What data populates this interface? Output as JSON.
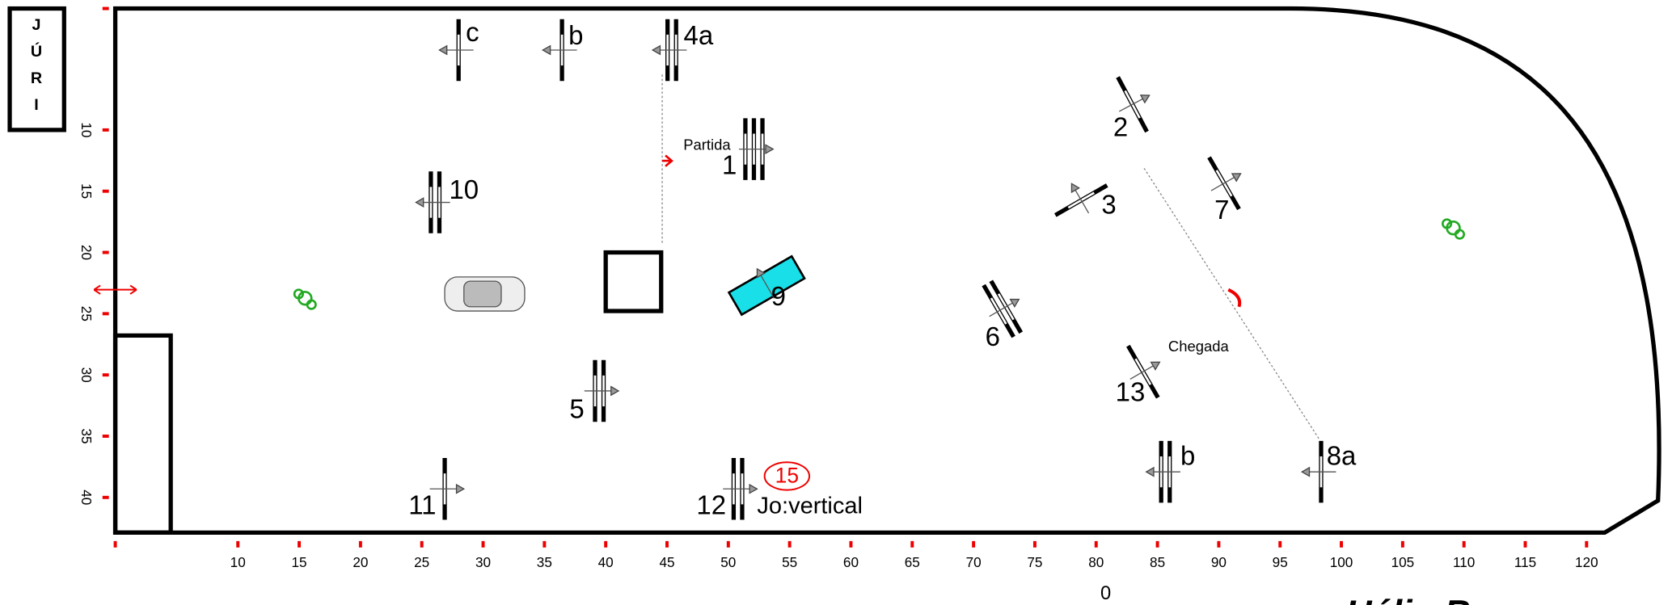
{
  "jury": [
    "J",
    "Ú",
    "R",
    "I"
  ],
  "x_scale": [
    10,
    15,
    20,
    25,
    30,
    35,
    40,
    45,
    50,
    55,
    60,
    65,
    70,
    75,
    80,
    85,
    90,
    95,
    100,
    105,
    110,
    115,
    120
  ],
  "y_scale": [
    10,
    15,
    20,
    25,
    30,
    35,
    40
  ],
  "obstacles": [
    {
      "label": "c"
    },
    {
      "label": "b"
    },
    {
      "label": "4a"
    },
    {
      "label": "1"
    },
    {
      "label": "2"
    },
    {
      "label": "3"
    },
    {
      "label": "7"
    },
    {
      "label": "10"
    },
    {
      "label": "9"
    },
    {
      "label": "6"
    },
    {
      "label": "13"
    },
    {
      "label": "5"
    },
    {
      "label": "11"
    },
    {
      "label": "12"
    },
    {
      "label": "b"
    },
    {
      "label": "8a"
    }
  ],
  "start_label": "Partida",
  "finish_label": "Chegada",
  "note": {
    "number": "15",
    "text": "Jo:vertical"
  },
  "origin": "0",
  "author": "Hélio B"
}
